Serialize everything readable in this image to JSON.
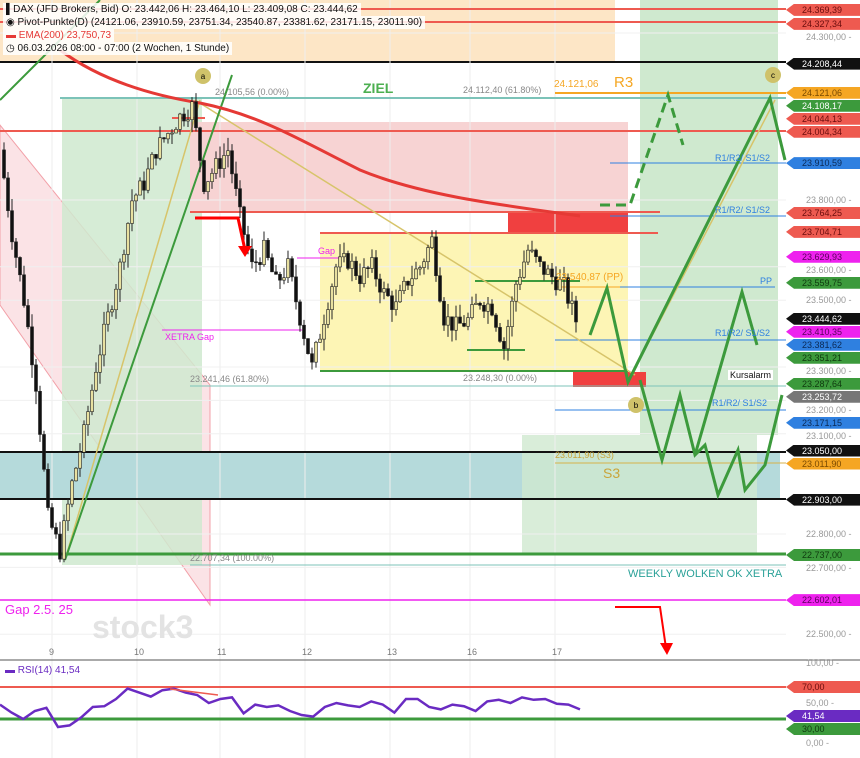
{
  "legend": {
    "instrument": "DAX (JFD Brokers, Bid)",
    "ohlc": "O: 23.442,06  H: 23.464,10  L: 23.409,08  C: 23.444,62",
    "pivot": "Pivot-Punkte(D)  (24121.06,  23910.59,  23751.34,  23540.87,  23381.62,  23171.15,  23011.90)",
    "ema": "EMA(200)  23,750,73",
    "period": "06.03.2026 08:00 - 07:00  (2 Wochen, 1 Stunde)"
  },
  "annotations": {
    "ziel": "ZIEL",
    "fib_top_left": "24.105,56 (0.00%)",
    "fib_top_mid": "24.112,40 (61.80%)",
    "r3_value": "24.121,06",
    "r3": "R3",
    "gap": "Gap",
    "xetra_gap": "XETRA Gap",
    "pp": "23.540,87 (PP)",
    "pp_short": "PP",
    "r1r2s1s2_a": "R1/R2/ S1/S2",
    "r1r2s1s2_b": "R1/R2/ S1/S2",
    "r1r2s1s2_c": "R1/R2/ S1/S2",
    "r1r2s1s2_d": "R1/R2/ S1/S2",
    "fib_618_low": "23.241,46 (61.80%)",
    "fib_0_low": "23.248,30 (0.00%)",
    "kursalarm": "Kursalarm",
    "s3_value": "23.011,90 (S3)",
    "s3": "S3",
    "fib_100": "22.707,34 (100.00%)",
    "weekly": "WEEKLY WOLKEN OK XETRA",
    "gap_25": "Gap 2.5. 25",
    "watermark": "stock3",
    "marker_a": "a",
    "marker_b": "b",
    "marker_c": "c"
  },
  "chart_data": {
    "type": "candlestick",
    "ylim": [
      22420,
      24400
    ],
    "x_tick_labels": [
      "9",
      "10",
      "11",
      "12",
      "13",
      "16",
      "17"
    ],
    "y_tick_labels": [
      "24.300,00",
      "23.800,00",
      "23.600,00",
      "23.500,00",
      "23.300,00",
      "23.200,00",
      "23.100,00",
      "22.800,00",
      "22.700,00",
      "22.500,00"
    ],
    "close_approx": [
      23950,
      23700,
      23500,
      23250,
      22850,
      22750,
      22950,
      23100,
      23300,
      23450,
      23600,
      23800,
      23850,
      23950,
      24000,
      24050,
      24080,
      23850,
      23900,
      23950,
      23750,
      23600,
      23650,
      23550,
      23600,
      23450,
      23300,
      23450,
      23600,
      23620,
      23570,
      23600,
      23520,
      23480,
      23560,
      23600,
      23680,
      23450,
      23420,
      23440,
      23500,
      23480,
      23360,
      23550,
      23650,
      23600,
      23570,
      23540,
      23440
    ],
    "price_tags": [
      {
        "label": "24.369,39",
        "bg": "#ee5a50",
        "fg": "#6b0d0d"
      },
      {
        "label": "24.327,34",
        "bg": "#ee5a50",
        "fg": "#6b0d0d"
      },
      {
        "label": "24.208,44",
        "bg": "#111111",
        "fg": "#ffffff"
      },
      {
        "label": "24.121,06",
        "bg": "#f5a623",
        "fg": "#7a4a00"
      },
      {
        "label": "24.108,17",
        "bg": "#3c9a3c",
        "fg": "#ffffff"
      },
      {
        "label": "24.044,13",
        "bg": "#ee5a50",
        "fg": "#6b0d0d"
      },
      {
        "label": "24.004,34",
        "bg": "#ee5a50",
        "fg": "#6b0d0d"
      },
      {
        "label": "23.910,59",
        "bg": "#2f80e0",
        "fg": "#0b2a55"
      },
      {
        "label": "23.764,25",
        "bg": "#ee5a50",
        "fg": "#6b0d0d"
      },
      {
        "label": "23.704,71",
        "bg": "#ee5a50",
        "fg": "#6b0d0d"
      },
      {
        "label": "23.629,93",
        "bg": "#ee22ee",
        "fg": "#5a005a"
      },
      {
        "label": "23.559,75",
        "bg": "#3c9a3c",
        "fg": "#0f3a0f"
      },
      {
        "label": "23.444,62",
        "bg": "#111111",
        "fg": "#ffffff"
      },
      {
        "label": "23.410,35",
        "bg": "#ee22ee",
        "fg": "#5a005a"
      },
      {
        "label": "23.381,62",
        "bg": "#2f80e0",
        "fg": "#0b2a55"
      },
      {
        "label": "23.351,21",
        "bg": "#3c9a3c",
        "fg": "#0f3a0f"
      },
      {
        "label": "23.287,64",
        "bg": "#3c9a3c",
        "fg": "#0f3a0f"
      },
      {
        "label": "23.253,72",
        "bg": "#777777",
        "fg": "#ffffff"
      },
      {
        "label": "23.171,15",
        "bg": "#2f80e0",
        "fg": "#0b2a55"
      },
      {
        "label": "23.050,00",
        "bg": "#111111",
        "fg": "#ffffff"
      },
      {
        "label": "23.011,90",
        "bg": "#f5a623",
        "fg": "#7a4a00"
      },
      {
        "label": "22.903,00",
        "bg": "#111111",
        "fg": "#ffffff"
      },
      {
        "label": "22.737,00",
        "bg": "#3c9a3c",
        "fg": "#0f3a0f"
      },
      {
        "label": "22.602,01",
        "bg": "#ee22ee",
        "fg": "#5a005a"
      }
    ],
    "rsi": {
      "label": "RSI(14)  41,54",
      "value_tag": "41,54",
      "ticks": [
        "100,00",
        "50,00",
        "0,00"
      ],
      "upper_tag": "70,00",
      "lower_tag": "30,00",
      "values": [
        48,
        38,
        30,
        40,
        44,
        20,
        22,
        32,
        45,
        46,
        55,
        68,
        63,
        58,
        66,
        68,
        63,
        60,
        50,
        55,
        57,
        37,
        48,
        45,
        47,
        40,
        35,
        33,
        45,
        50,
        47,
        45,
        52,
        48,
        38,
        55,
        55,
        45,
        42,
        48,
        46,
        40,
        52,
        54,
        50,
        57,
        54,
        55,
        49,
        48,
        42
      ]
    },
    "colors": {
      "ema": "#e53935",
      "rsi": "#6a2bc2",
      "up": "#222",
      "down": "#222"
    }
  }
}
